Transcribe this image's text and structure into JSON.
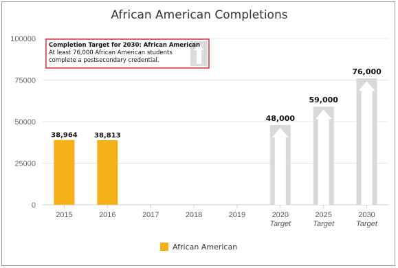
{
  "chart_data": {
    "type": "bar",
    "title": "African American Completions",
    "ylim": [
      0,
      100000
    ],
    "yticks": [
      "0",
      "25000",
      "50000",
      "75000",
      "100000"
    ],
    "grid": true,
    "categories": [
      "2015",
      "2016",
      "2017",
      "2018",
      "2019",
      "2020",
      "2025",
      "2030"
    ],
    "category_sublabels": [
      "",
      "",
      "",
      "",
      "",
      "Target",
      "Target",
      "Target"
    ],
    "series": [
      {
        "name": "African American",
        "values": [
          38964,
          38813,
          null,
          null,
          null,
          null,
          null,
          null
        ],
        "labels": [
          "38,964",
          "38,813",
          "",
          "",
          "",
          "",
          "",
          ""
        ],
        "color": "#f5b01a"
      }
    ],
    "targets": {
      "values": [
        null,
        null,
        null,
        null,
        null,
        48000,
        59000,
        76000
      ],
      "labels": [
        "",
        "",
        "",
        "",
        "",
        "48,000",
        "59,000",
        "76,000"
      ],
      "color": "#d9d9d9"
    },
    "annotation": {
      "title": "Completion Target for 2030: African American",
      "line1": "At least 76,000 African American students",
      "line2": "complete a postsecondary credential.",
      "border_color": "#cc3333"
    },
    "legend": {
      "label": "African American",
      "placement": "bottom-center"
    }
  }
}
